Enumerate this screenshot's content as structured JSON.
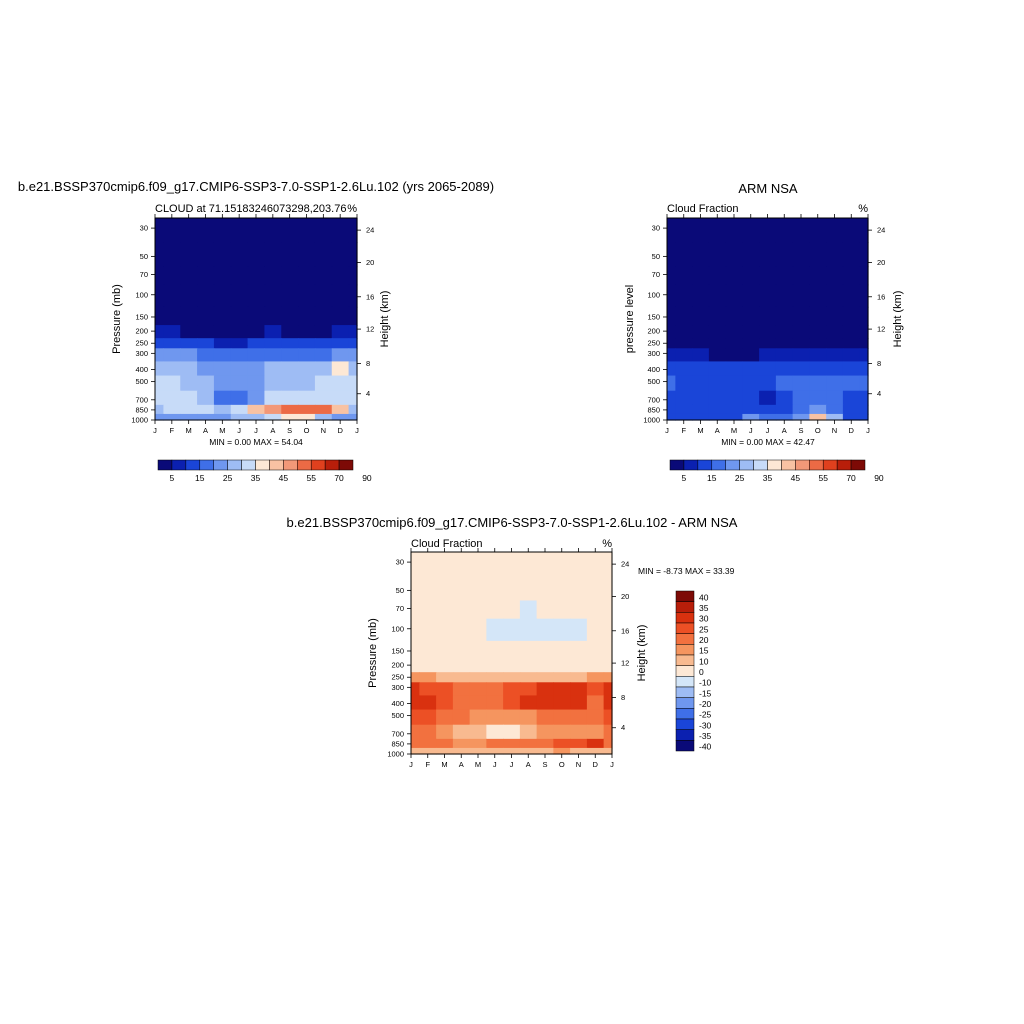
{
  "panels": [
    {
      "title": "b.e21.BSSP370cmip6.f09_g17.CMIP6-SSP3-7.0-SSP1-2.6Lu.102 (yrs 2065-2089)",
      "left_label": "CLOUD at 71.15183246073298,203.76",
      "right_label": "%",
      "ylabel_left": "Pressure (mb)",
      "ylabel_right": "Height (km)",
      "minmax": "MIN =   0.00 MAX =  54.04"
    },
    {
      "title": "ARM NSA",
      "left_label": "Cloud Fraction",
      "right_label": "%",
      "ylabel_left": "pressure level",
      "ylabel_right": "Height (km)",
      "minmax": "MIN =   0.00 MAX =  42.47"
    },
    {
      "title": "b.e21.BSSP370cmip6.f09_g17.CMIP6-SSP3-7.0-SSP1-2.6Lu.102 - ARM NSA",
      "left_label": "Cloud Fraction",
      "right_label": "%",
      "ylabel_left": "Pressure (mb)",
      "ylabel_right": "Height (km)",
      "minmax": "MIN =  -8.73 MAX =  33.39"
    }
  ],
  "chart_data": [
    {
      "type": "heatmap",
      "x_ticks": [
        "J",
        "F",
        "M",
        "A",
        "M",
        "J",
        "J",
        "A",
        "S",
        "O",
        "N",
        "D",
        "J"
      ],
      "y_ticks_left": [
        "30",
        "50",
        "70",
        "100",
        "150",
        "200",
        "250",
        "300",
        "400",
        "500",
        "700",
        "850",
        "1000"
      ],
      "y_ticks_right": [
        "24",
        "20",
        "16",
        "12",
        "8",
        "4"
      ],
      "colorbar_labels": [
        "5",
        "15",
        "25",
        "35",
        "45",
        "55",
        "70",
        "90"
      ],
      "colorbar_colors": [
        "#0a0a78",
        "#0b20b0",
        "#1a45d8",
        "#3f6fe8",
        "#6f97ef",
        "#9ebcf4",
        "#c7dbf8",
        "#fde8d5",
        "#f8c2a3",
        "#f29878",
        "#ec6a45",
        "#e0401e",
        "#b81e0a",
        "#7d0a06"
      ],
      "field": [
        [
          0,
          0,
          0,
          0,
          0,
          0,
          0,
          0,
          0,
          0,
          0,
          0,
          0
        ],
        [
          0,
          0,
          0,
          0,
          0,
          0,
          0,
          0,
          0,
          0,
          0,
          0,
          0
        ],
        [
          0,
          0,
          0,
          0,
          0,
          0,
          0,
          0,
          0,
          0,
          0,
          0,
          0
        ],
        [
          0,
          0,
          0,
          0,
          0,
          0,
          0,
          0,
          0,
          0,
          0,
          0,
          0
        ],
        [
          2,
          2,
          2,
          1,
          1,
          1,
          1,
          1,
          1,
          1,
          1,
          2,
          2
        ],
        [
          5,
          5,
          4,
          4,
          3,
          3,
          4,
          5,
          4,
          4,
          4,
          5,
          5
        ],
        [
          13,
          12,
          12,
          10,
          8,
          9,
          11,
          12,
          11,
          10,
          10,
          12,
          13
        ],
        [
          21,
          20,
          20,
          18,
          16,
          16,
          18,
          19,
          19,
          18,
          18,
          20,
          21
        ],
        [
          27,
          27,
          26,
          23,
          20,
          21,
          23,
          26,
          26,
          26,
          29,
          38,
          27
        ],
        [
          30,
          30,
          29,
          25,
          20,
          20,
          24,
          28,
          28,
          29,
          32,
          34,
          30
        ],
        [
          31,
          32,
          30,
          25,
          18,
          16,
          24,
          30,
          31,
          31,
          32,
          32,
          31
        ],
        [
          28,
          30,
          32,
          30,
          28,
          34,
          42,
          48,
          51,
          52,
          54,
          42,
          28
        ],
        [
          22,
          24,
          24,
          24,
          24,
          25,
          28,
          33,
          36,
          36,
          28,
          24,
          22
        ]
      ],
      "min": 0.0,
      "max": 54.04
    },
    {
      "type": "heatmap",
      "x_ticks": [
        "J",
        "F",
        "M",
        "A",
        "M",
        "J",
        "J",
        "A",
        "S",
        "O",
        "N",
        "D",
        "J"
      ],
      "y_ticks_left": [
        "30",
        "50",
        "70",
        "100",
        "150",
        "200",
        "250",
        "300",
        "400",
        "500",
        "700",
        "850",
        "1000"
      ],
      "y_ticks_right": [
        "24",
        "20",
        "16",
        "12",
        "8",
        "4"
      ],
      "colorbar_labels": [
        "5",
        "15",
        "25",
        "35",
        "45",
        "55",
        "70",
        "90"
      ],
      "colorbar_colors": [
        "#0a0a78",
        "#0b20b0",
        "#1a45d8",
        "#3f6fe8",
        "#6f97ef",
        "#9ebcf4",
        "#c7dbf8",
        "#fde8d5",
        "#f8c2a3",
        "#f29878",
        "#ec6a45",
        "#e0401e",
        "#b81e0a",
        "#7d0a06"
      ],
      "field": [
        [
          0,
          0,
          0,
          0,
          0,
          0,
          0,
          0,
          0,
          0,
          0,
          0,
          0
        ],
        [
          0,
          0,
          0,
          0,
          0,
          0,
          0,
          0,
          0,
          0,
          0,
          0,
          0
        ],
        [
          0,
          0,
          0,
          0,
          0,
          0,
          0,
          0,
          0,
          0,
          0,
          0,
          0
        ],
        [
          0,
          0,
          0,
          0,
          0,
          0,
          0,
          0,
          0,
          0,
          0,
          0,
          0
        ],
        [
          0,
          0,
          0,
          0,
          0,
          0,
          0,
          0,
          0,
          0,
          0,
          0,
          0
        ],
        [
          1,
          1,
          1,
          1,
          1,
          1,
          1,
          1,
          1,
          1,
          1,
          1,
          1
        ],
        [
          3,
          3,
          2,
          2,
          2,
          2,
          3,
          3,
          3,
          3,
          3,
          3,
          3
        ],
        [
          7,
          6,
          5,
          4,
          4,
          4,
          6,
          7,
          7,
          7,
          6,
          7,
          7
        ],
        [
          13,
          12,
          12,
          11,
          10,
          10,
          12,
          14,
          14,
          14,
          13,
          13,
          13
        ],
        [
          15,
          14,
          14,
          13,
          12,
          12,
          13,
          15,
          16,
          16,
          15,
          15,
          15
        ],
        [
          14,
          13,
          12,
          12,
          10,
          10,
          9,
          13,
          16,
          17,
          16,
          14,
          14
        ],
        [
          12,
          11,
          11,
          11,
          10,
          12,
          14,
          14,
          16,
          20,
          15,
          12,
          12
        ],
        [
          12,
          12,
          12,
          13,
          14,
          22,
          18,
          17,
          22,
          40,
          25,
          14,
          12
        ]
      ],
      "min": 0.0,
      "max": 42.47
    },
    {
      "type": "heatmap",
      "x_ticks": [
        "J",
        "F",
        "M",
        "A",
        "M",
        "J",
        "J",
        "A",
        "S",
        "O",
        "N",
        "D",
        "J"
      ],
      "y_ticks_left": [
        "30",
        "50",
        "70",
        "100",
        "150",
        "200",
        "250",
        "300",
        "400",
        "500",
        "700",
        "850",
        "1000"
      ],
      "y_ticks_right": [
        "24",
        "20",
        "16",
        "12",
        "8",
        "4"
      ],
      "colorbar_labels": [
        "40",
        "35",
        "30",
        "25",
        "20",
        "15",
        "10",
        "0",
        "-10",
        "-15",
        "-20",
        "-25",
        "-30",
        "-35",
        "-40"
      ],
      "colorbar_colors": [
        "#7d0a06",
        "#b81e0a",
        "#d9310f",
        "#ec5025",
        "#f2713f",
        "#f5955f",
        "#f8ba90",
        "#fde8d5",
        "#d4e6f8",
        "#9ebcf4",
        "#6f97ef",
        "#3f6fe8",
        "#1a45d8",
        "#0b20b0",
        "#0a0a78"
      ],
      "field": [
        [
          5,
          5,
          5,
          5,
          5,
          5,
          5,
          5,
          5,
          5,
          5,
          5,
          5
        ],
        [
          5,
          5,
          5,
          5,
          5,
          5,
          5,
          5,
          5,
          5,
          5,
          5,
          5
        ],
        [
          5,
          5,
          5,
          5,
          5,
          5,
          5,
          -2,
          5,
          5,
          5,
          5,
          5
        ],
        [
          5,
          5,
          5,
          5,
          5,
          -3,
          -3,
          -3,
          -3,
          -3,
          -3,
          5,
          5
        ],
        [
          5,
          5,
          5,
          5,
          5,
          5,
          5,
          5,
          5,
          5,
          5,
          5,
          5
        ],
        [
          6,
          6,
          6,
          5,
          5,
          5,
          5,
          6,
          6,
          6,
          6,
          6,
          6
        ],
        [
          16,
          15,
          14,
          12,
          10,
          10,
          12,
          14,
          14,
          14,
          14,
          15,
          16
        ],
        [
          30,
          28,
          26,
          22,
          20,
          22,
          26,
          28,
          30,
          32,
          30,
          26,
          30
        ],
        [
          31,
          30,
          28,
          24,
          22,
          24,
          27,
          30,
          30,
          30,
          31,
          24,
          31
        ],
        [
          26,
          26,
          24,
          20,
          18,
          16,
          16,
          18,
          20,
          22,
          24,
          22,
          26
        ],
        [
          20,
          20,
          18,
          14,
          10,
          8,
          8,
          12,
          16,
          16,
          18,
          18,
          20
        ],
        [
          24,
          20,
          22,
          16,
          18,
          20,
          22,
          24,
          24,
          26,
          28,
          33,
          24
        ],
        [
          12,
          12,
          12,
          10,
          10,
          10,
          10,
          12,
          14,
          16,
          14,
          14,
          12
        ]
      ],
      "min": -8.73,
      "max": 33.39
    }
  ]
}
